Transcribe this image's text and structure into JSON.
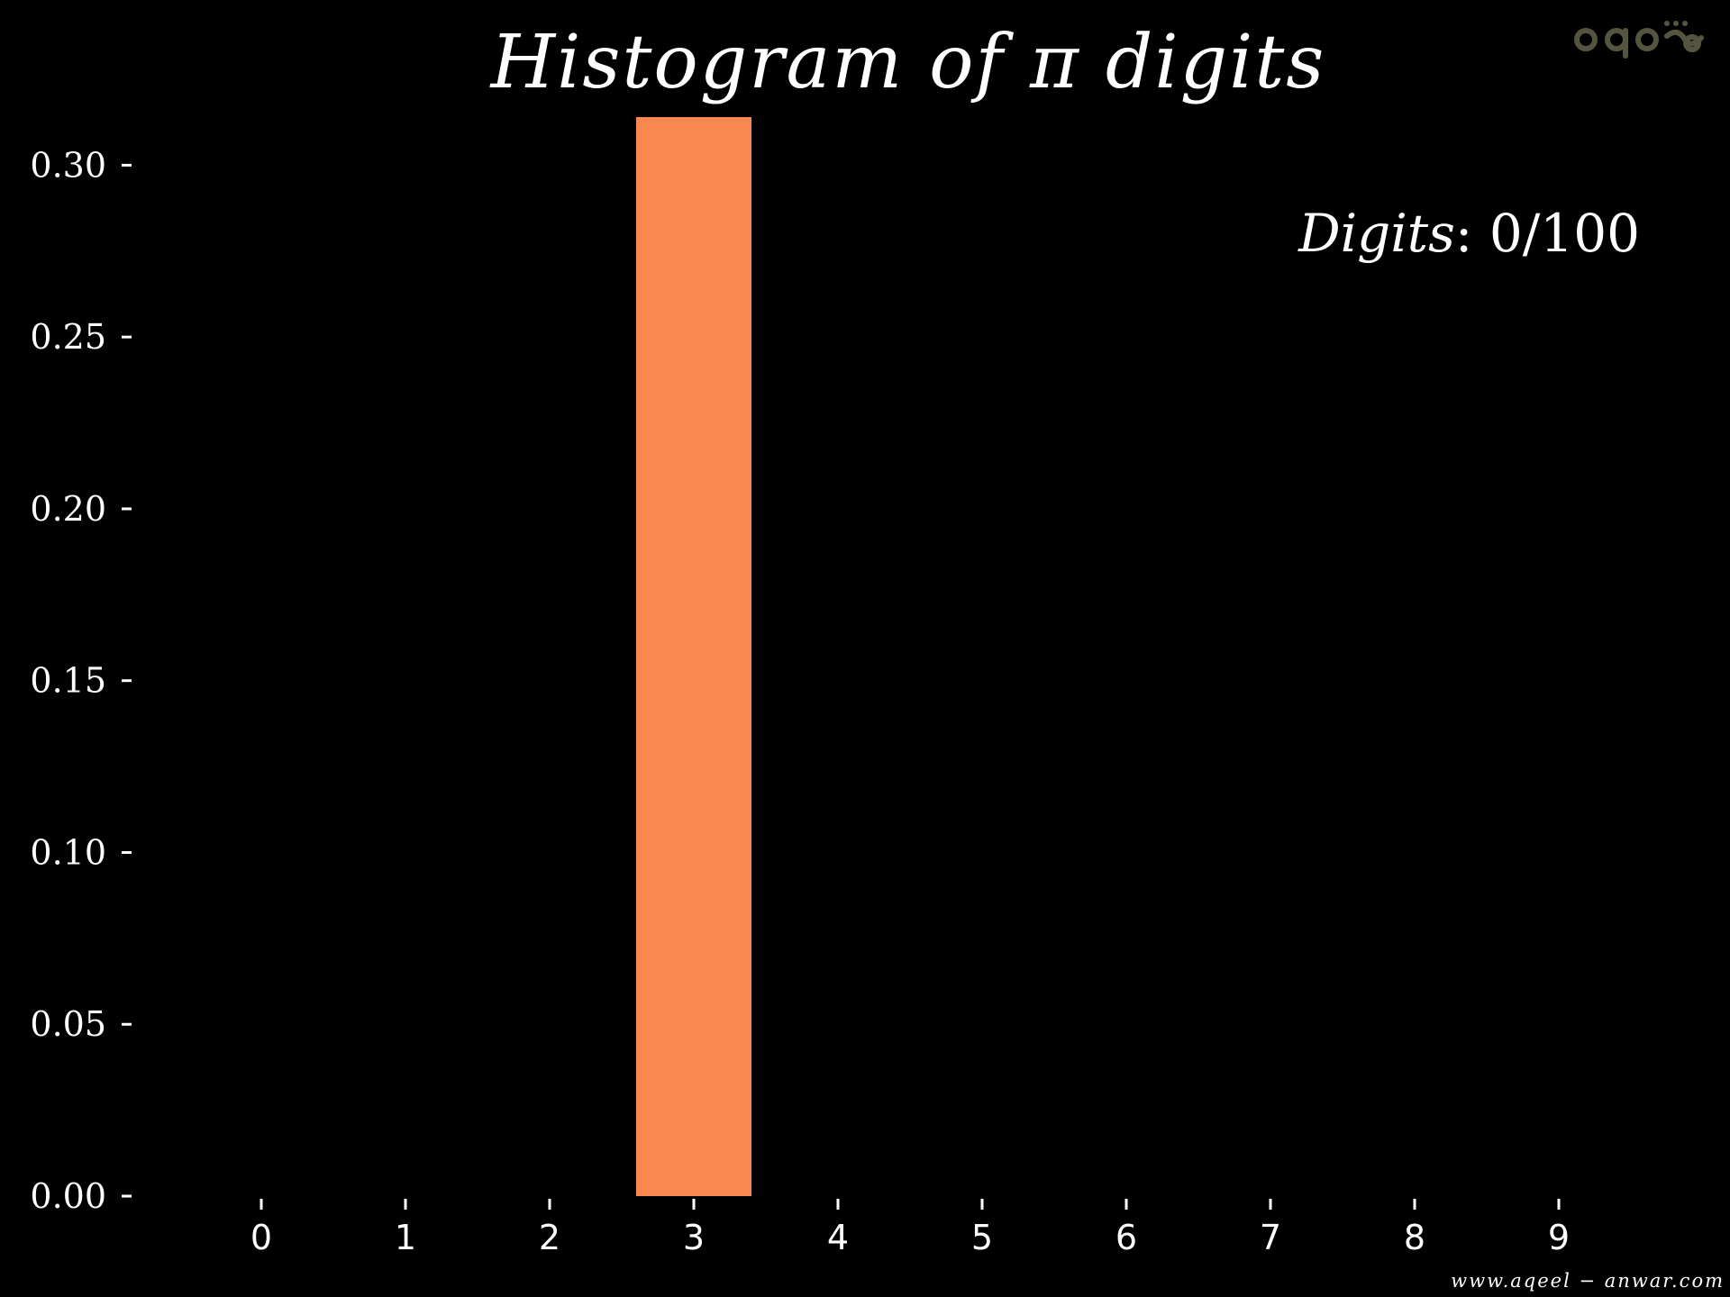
{
  "chart_data": {
    "type": "bar",
    "title": "Histogram of π digits",
    "categories": [
      "0",
      "1",
      "2",
      "3",
      "4",
      "5",
      "6",
      "7",
      "8",
      "9"
    ],
    "values": [
      0,
      0,
      0,
      0.314,
      0,
      0,
      0,
      0,
      0,
      0
    ],
    "yticks": [
      "0.00",
      "0.05",
      "0.10",
      "0.15",
      "0.20",
      "0.25",
      "0.30"
    ],
    "ylim": [
      0,
      0.314
    ],
    "bar_color": "#F8884F",
    "background": "#000000",
    "text_color": "#FFFFFF",
    "grid": false
  },
  "annotation": {
    "label": "Digits",
    "value": ": 0/100"
  },
  "watermark": {
    "text": "www.aqeel − anwar.com"
  },
  "logo": {
    "text": "aqeel",
    "color": "#55553F"
  }
}
